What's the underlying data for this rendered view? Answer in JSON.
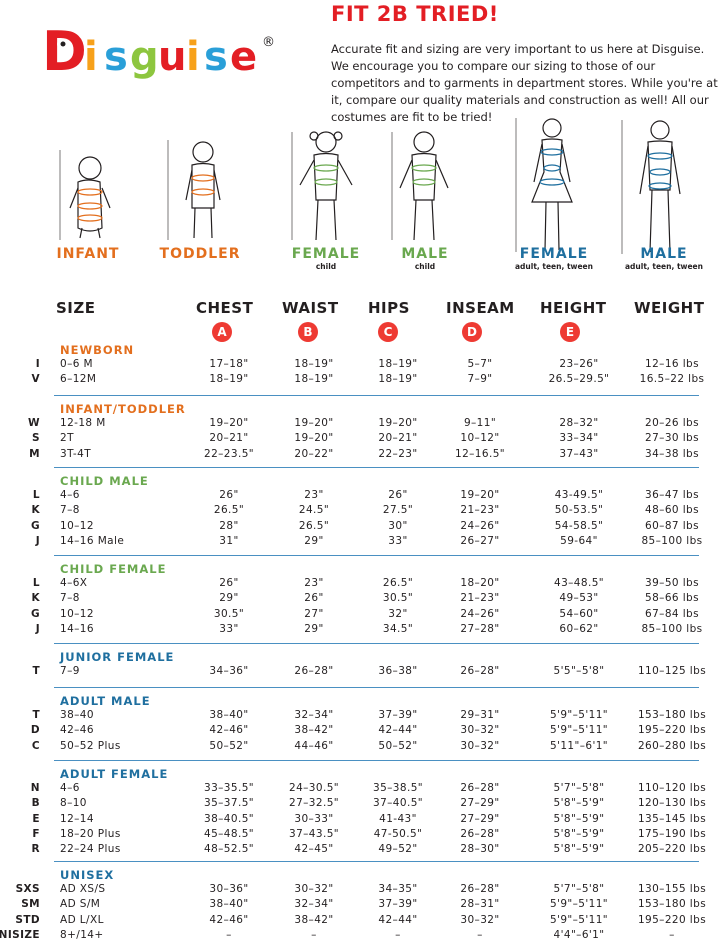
{
  "logo": {
    "text": "Disguise",
    "registered": "®"
  },
  "title": "FIT 2B TRIED!",
  "intro": "Accurate fit and sizing are very important to us here at Disguise. We encourage you to compare our sizing to those of our competitors and to garments in department stores. While you're at it, compare our quality materials and construction as well! All our costumes are fit to be tried!",
  "figures": [
    {
      "label": "INFANT",
      "sub": "",
      "color": "#e36f1e"
    },
    {
      "label": "TODDLER",
      "sub": "",
      "color": "#e36f1e"
    },
    {
      "label": "FEMALE",
      "sub": "child",
      "color": "#6aa84f"
    },
    {
      "label": "MALE",
      "sub": "child",
      "color": "#6aa84f"
    },
    {
      "label": "FEMALE",
      "sub": "adult, teen, tween",
      "color": "#1f6f9f"
    },
    {
      "label": "MALE",
      "sub": "adult, teen, tween",
      "color": "#1f6f9f"
    }
  ],
  "headers": {
    "size": "SIZE",
    "chest": "CHEST",
    "waist": "WAIST",
    "hips": "HIPS",
    "inseam": "INSEAM",
    "height": "HEIGHT",
    "weight": "WEIGHT"
  },
  "badges": {
    "chest": "A",
    "waist": "B",
    "hips": "C",
    "inseam": "D",
    "height": "E"
  },
  "colors": {
    "accent_red": "#e31e24",
    "orange": "#e36f1e",
    "green": "#6aa84f",
    "blue": "#1f6f9f"
  },
  "sections": [
    {
      "title": "NEWBORN",
      "color": "#e36f1e",
      "rows": [
        {
          "code": "I",
          "size": "0–6 M",
          "chest": "17–18\"",
          "waist": "18–19\"",
          "hips": "18–19\"",
          "inseam": "5–7\"",
          "height": "23–26\"",
          "weight": "12–16 lbs"
        },
        {
          "code": "V",
          "size": "6–12M",
          "chest": "18–19\"",
          "waist": "18–19\"",
          "hips": "18–19\"",
          "inseam": "7–9\"",
          "height": "26.5–29.5\"",
          "weight": "16.5–22 lbs"
        }
      ]
    },
    {
      "title": "INFANT/TODDLER",
      "color": "#e36f1e",
      "rows": [
        {
          "code": "W",
          "size": "12-18 M",
          "chest": "19–20\"",
          "waist": "19–20\"",
          "hips": "19–20\"",
          "inseam": "9–11\"",
          "height": "28–32\"",
          "weight": "20–26 lbs"
        },
        {
          "code": "S",
          "size": "2T",
          "chest": "20–21\"",
          "waist": "19–20\"",
          "hips": "20–21\"",
          "inseam": "10–12\"",
          "height": "33–34\"",
          "weight": "27–30 lbs"
        },
        {
          "code": "M",
          "size": "3T-4T",
          "chest": "22–23.5\"",
          "waist": "20–22\"",
          "hips": "22–23\"",
          "inseam": "12–16.5\"",
          "height": "37–43\"",
          "weight": "34–38 lbs"
        }
      ]
    },
    {
      "title": "CHILD MALE",
      "color": "#6aa84f",
      "rows": [
        {
          "code": "L",
          "size": "4–6",
          "chest": "26\"",
          "waist": "23\"",
          "hips": "26\"",
          "inseam": "19–20\"",
          "height": "43-49.5\"",
          "weight": "36–47 lbs"
        },
        {
          "code": "K",
          "size": "7–8",
          "chest": "26.5\"",
          "waist": "24.5\"",
          "hips": "27.5\"",
          "inseam": "21–23\"",
          "height": "50-53.5\"",
          "weight": "48–60 lbs"
        },
        {
          "code": "G",
          "size": "10–12",
          "chest": "28\"",
          "waist": "26.5\"",
          "hips": "30\"",
          "inseam": "24–26\"",
          "height": "54-58.5\"",
          "weight": "60–87 lbs"
        },
        {
          "code": "J",
          "size": "14–16 Male",
          "chest": "31\"",
          "waist": "29\"",
          "hips": "33\"",
          "inseam": "26–27\"",
          "height": "59-64\"",
          "weight": "85–100 lbs"
        }
      ]
    },
    {
      "title": "CHILD FEMALE",
      "color": "#6aa84f",
      "rows": [
        {
          "code": "L",
          "size": "4–6X",
          "chest": "26\"",
          "waist": "23\"",
          "hips": "26.5\"",
          "inseam": "18–20\"",
          "height": "43–48.5\"",
          "weight": "39–50 lbs"
        },
        {
          "code": "K",
          "size": "7–8",
          "chest": "29\"",
          "waist": "26\"",
          "hips": "30.5\"",
          "inseam": "21–23\"",
          "height": "49–53\"",
          "weight": "58–66 lbs"
        },
        {
          "code": "G",
          "size": "10–12",
          "chest": "30.5\"",
          "waist": "27\"",
          "hips": "32\"",
          "inseam": "24–26\"",
          "height": "54–60\"",
          "weight": "67–84 lbs"
        },
        {
          "code": "J",
          "size": "14–16",
          "chest": "33\"",
          "waist": "29\"",
          "hips": "34.5\"",
          "inseam": "27–28\"",
          "height": "60–62\"",
          "weight": "85–100 lbs"
        }
      ]
    },
    {
      "title": "JUNIOR FEMALE",
      "color": "#1f6f9f",
      "rows": [
        {
          "code": "T",
          "size": "7–9",
          "chest": "34–36\"",
          "waist": "26–28\"",
          "hips": "36–38\"",
          "inseam": "26–28\"",
          "height": "5'5\"–5'8\"",
          "weight": "110–125 lbs"
        }
      ]
    },
    {
      "title": "ADULT MALE",
      "color": "#1f6f9f",
      "rows": [
        {
          "code": "T",
          "size": "38–40",
          "chest": "38–40\"",
          "waist": "32–34\"",
          "hips": "37–39\"",
          "inseam": "29–31\"",
          "height": "5'9\"–5'11\"",
          "weight": "153–180 lbs"
        },
        {
          "code": "D",
          "size": "42–46",
          "chest": "42–46\"",
          "waist": "38–42\"",
          "hips": "42–44\"",
          "inseam": "30–32\"",
          "height": "5'9\"–5'11\"",
          "weight": "195–220 lbs"
        },
        {
          "code": "C",
          "size": "50–52 Plus",
          "chest": "50–52\"",
          "waist": "44–46\"",
          "hips": "50–52\"",
          "inseam": "30–32\"",
          "height": "5'11\"–6'1\"",
          "weight": "260–280 lbs"
        }
      ]
    },
    {
      "title": "ADULT FEMALE",
      "color": "#1f6f9f",
      "rows": [
        {
          "code": "N",
          "size": "4–6",
          "chest": "33–35.5\"",
          "waist": "24–30.5\"",
          "hips": "35–38.5\"",
          "inseam": "26–28\"",
          "height": "5'7\"–5'8\"",
          "weight": "110–120 lbs"
        },
        {
          "code": "B",
          "size": "8–10",
          "chest": "35–37.5\"",
          "waist": "27–32.5\"",
          "hips": "37–40.5\"",
          "inseam": "27–29\"",
          "height": "5'8\"–5'9\"",
          "weight": "120–130 lbs"
        },
        {
          "code": "E",
          "size": "12–14",
          "chest": "38–40.5\"",
          "waist": "30–33\"",
          "hips": "41-43\"",
          "inseam": "27–29\"",
          "height": "5'8\"–5'9\"",
          "weight": "135–145 lbs"
        },
        {
          "code": "F",
          "size": "18–20 Plus",
          "chest": "45–48.5\"",
          "waist": "37–43.5\"",
          "hips": "47-50.5\"",
          "inseam": "26–28\"",
          "height": "5'8\"–5'9\"",
          "weight": "175–190 lbs"
        },
        {
          "code": "R",
          "size": "22–24 Plus",
          "chest": "48–52.5\"",
          "waist": "42–45\"",
          "hips": "49–52\"",
          "inseam": "28–30\"",
          "height": "5'8\"–5'9\"",
          "weight": "205–220 lbs"
        }
      ]
    },
    {
      "title": "UNISEX",
      "color": "#1f6f9f",
      "rows": [
        {
          "code": "SXS",
          "size": "AD XS/S",
          "chest": "30–36\"",
          "waist": "30–32\"",
          "hips": "34–35\"",
          "inseam": "26–28\"",
          "height": "5'7\"–5'8\"",
          "weight": "130–155 lbs"
        },
        {
          "code": "SM",
          "size": "AD S/M",
          "chest": "38–40\"",
          "waist": "32–34\"",
          "hips": "37–39\"",
          "inseam": "28–31\"",
          "height": "5'9\"–5'11\"",
          "weight": "153–180 lbs"
        },
        {
          "code": "STD",
          "size": "AD L/XL",
          "chest": "42–46\"",
          "waist": "38–42\"",
          "hips": "42–44\"",
          "inseam": "30–32\"",
          "height": "5'9\"–5'11\"",
          "weight": "195–220 lbs"
        },
        {
          "code": "UNISIZE",
          "size": "8+/14+",
          "chest": "–",
          "waist": "–",
          "hips": "–",
          "inseam": "–",
          "height": "4'4\"–6'1\"",
          "weight": "–"
        }
      ]
    }
  ]
}
